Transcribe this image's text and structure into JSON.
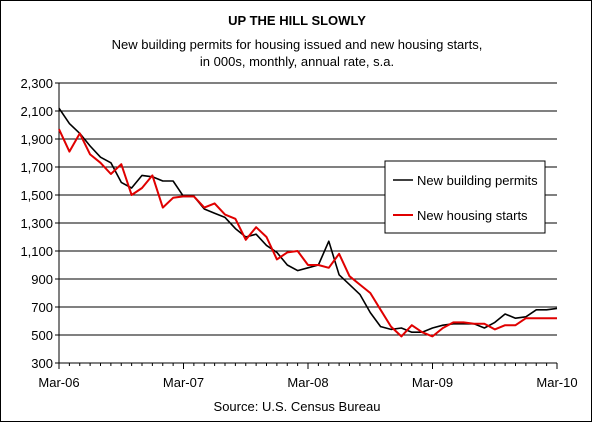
{
  "chart_data": {
    "type": "line",
    "title": "UP THE HILL SLOWLY",
    "subtitle_lines": [
      "New building permits for housing issued and new housing starts,",
      "in 000s, monthly, annual rate, s.a."
    ],
    "source": "Source: U.S. Census Bureau",
    "xlabel": "",
    "ylabel": "",
    "x_tick_labels": [
      "Mar-06",
      "Mar-07",
      "Mar-08",
      "Mar-09",
      "Mar-10"
    ],
    "x_range_months": [
      0,
      48
    ],
    "ylim": [
      300,
      2300
    ],
    "y_ticks": [
      300,
      500,
      700,
      900,
      1100,
      1300,
      1500,
      1700,
      1900,
      2100,
      2300
    ],
    "y_tick_labels": [
      "300",
      "500",
      "700",
      "900",
      "1,100",
      "1,300",
      "1,500",
      "1,700",
      "1,900",
      "2,100",
      "2,300"
    ],
    "grid": true,
    "legend_position": "right",
    "series": [
      {
        "name": "New building permits",
        "color": "#000000",
        "x": [
          0,
          1,
          2,
          3,
          4,
          5,
          6,
          7,
          8,
          9,
          10,
          11,
          12,
          13,
          14,
          15,
          16,
          17,
          18,
          19,
          20,
          21,
          22,
          23,
          24,
          25,
          26,
          27,
          28,
          29,
          30,
          31,
          32,
          33,
          34,
          35,
          36,
          37,
          38,
          39,
          40,
          41,
          42,
          43,
          44,
          45,
          46,
          47,
          48
        ],
        "values": [
          2120,
          2010,
          1940,
          1850,
          1770,
          1730,
          1590,
          1550,
          1640,
          1630,
          1600,
          1600,
          1490,
          1490,
          1400,
          1370,
          1340,
          1260,
          1200,
          1220,
          1140,
          1090,
          1000,
          960,
          980,
          1000,
          1170,
          930,
          860,
          790,
          660,
          560,
          540,
          550,
          520,
          520,
          550,
          570,
          580,
          580,
          580,
          550,
          590,
          650,
          620,
          630,
          680,
          680,
          690
        ]
      },
      {
        "name": "New housing starts",
        "color": "#e00000",
        "x": [
          0,
          1,
          2,
          3,
          4,
          5,
          6,
          7,
          8,
          9,
          10,
          11,
          12,
          13,
          14,
          15,
          16,
          17,
          18,
          19,
          20,
          21,
          22,
          23,
          24,
          25,
          26,
          27,
          28,
          29,
          30,
          31,
          32,
          33,
          34,
          35,
          36,
          37,
          38,
          39,
          40,
          41,
          42,
          43,
          44,
          45,
          46,
          47,
          48
        ],
        "values": [
          1970,
          1810,
          1940,
          1790,
          1730,
          1650,
          1720,
          1500,
          1550,
          1640,
          1410,
          1480,
          1490,
          1490,
          1410,
          1440,
          1360,
          1330,
          1180,
          1270,
          1200,
          1040,
          1090,
          1100,
          1000,
          1000,
          980,
          1080,
          920,
          860,
          800,
          680,
          560,
          490,
          570,
          520,
          490,
          550,
          590,
          590,
          580,
          580,
          540,
          570,
          570,
          620,
          620,
          620,
          620
        ]
      }
    ]
  }
}
